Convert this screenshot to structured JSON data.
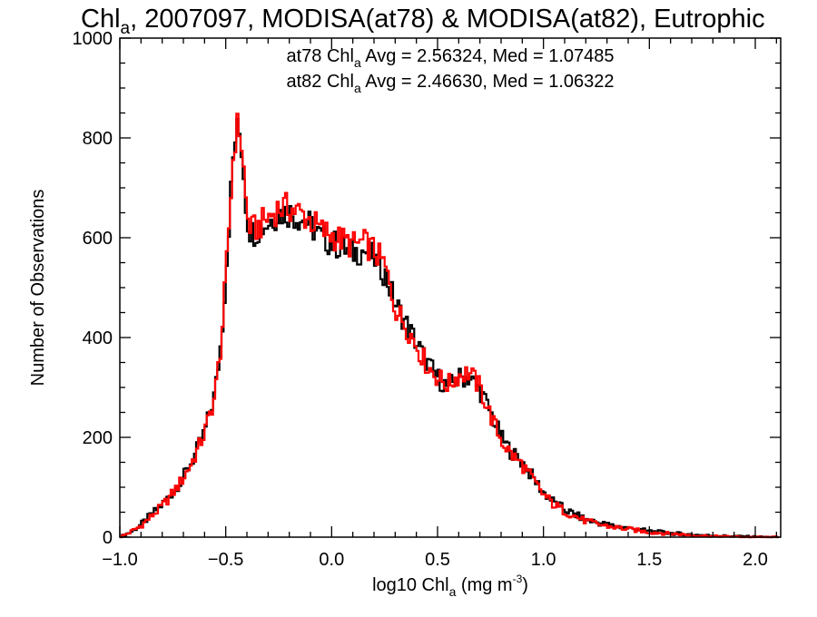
{
  "chart_data": {
    "type": "line",
    "style": "step-histogram",
    "title": {
      "prefix": "Chl",
      "prefix_sub": "a",
      "rest": ", 2007097, MODISA(at78) & MODISA(at82), Eutrophic"
    },
    "xlabel": {
      "prefix": "log10 Chl",
      "sub": "a",
      "unit": " (mg m",
      "sup": "-3",
      "close": ")"
    },
    "ylabel": "Number of Observations",
    "xlim": [
      -1.0,
      2.12
    ],
    "ylim": [
      0,
      1000
    ],
    "x_ticks": [
      -1.0,
      -0.5,
      0.0,
      0.5,
      1.0,
      1.5,
      2.0
    ],
    "x_tick_labels": [
      "−1.0",
      "−0.5",
      "0.0",
      "0.5",
      "1.0",
      "1.5",
      "2.0"
    ],
    "y_ticks": [
      0,
      200,
      400,
      600,
      800,
      1000
    ],
    "y_tick_labels": [
      "0",
      "200",
      "400",
      "600",
      "800",
      "1000"
    ],
    "grid": false,
    "legend_placement": "top-center",
    "bin_width": 0.01,
    "series": [
      {
        "name": "at78",
        "color": "#000000",
        "stats": {
          "a": "at78 Chl",
          "sub": "a",
          "b": " Avg = 2.56324, Med = 1.07485"
        },
        "x": [
          -1.0,
          -0.95,
          -0.9,
          -0.85,
          -0.8,
          -0.75,
          -0.7,
          -0.65,
          -0.6,
          -0.55,
          -0.52,
          -0.5,
          -0.48,
          -0.46,
          -0.44,
          -0.43,
          -0.42,
          -0.41,
          -0.4,
          -0.38,
          -0.35,
          -0.3,
          -0.25,
          -0.2,
          -0.15,
          -0.1,
          -0.05,
          0.0,
          0.05,
          0.1,
          0.15,
          0.2,
          0.25,
          0.3,
          0.35,
          0.4,
          0.45,
          0.5,
          0.55,
          0.6,
          0.65,
          0.7,
          0.75,
          0.8,
          0.85,
          0.9,
          0.95,
          1.0,
          1.05,
          1.1,
          1.15,
          1.2,
          1.3,
          1.4,
          1.5,
          1.6,
          1.7,
          1.8,
          1.9,
          2.0,
          2.1
        ],
        "y": [
          0,
          10,
          25,
          45,
          65,
          90,
          120,
          160,
          210,
          290,
          400,
          520,
          660,
          790,
          820,
          800,
          760,
          700,
          640,
          610,
          615,
          630,
          650,
          650,
          640,
          625,
          600,
          590,
          580,
          570,
          575,
          560,
          530,
          470,
          430,
          390,
          350,
          320,
          300,
          320,
          320,
          295,
          250,
          200,
          170,
          150,
          120,
          90,
          70,
          55,
          45,
          35,
          25,
          18,
          12,
          8,
          5,
          3,
          2,
          1,
          0
        ]
      },
      {
        "name": "at82",
        "color": "#ff0000",
        "stats": {
          "a": "at82 Chl",
          "sub": "a",
          "b": " Avg = 2.46630, Med = 1.06322"
        },
        "x": [
          -1.0,
          -0.95,
          -0.9,
          -0.85,
          -0.8,
          -0.75,
          -0.7,
          -0.65,
          -0.6,
          -0.55,
          -0.52,
          -0.5,
          -0.48,
          -0.46,
          -0.44,
          -0.43,
          -0.42,
          -0.41,
          -0.4,
          -0.38,
          -0.35,
          -0.3,
          -0.25,
          -0.2,
          -0.15,
          -0.1,
          -0.05,
          0.0,
          0.05,
          0.1,
          0.15,
          0.2,
          0.25,
          0.3,
          0.35,
          0.4,
          0.45,
          0.5,
          0.55,
          0.6,
          0.65,
          0.7,
          0.75,
          0.8,
          0.85,
          0.9,
          0.95,
          1.0,
          1.05,
          1.1,
          1.15,
          1.2,
          1.3,
          1.4,
          1.5,
          1.6,
          1.7,
          1.8,
          1.9,
          2.0,
          2.1
        ],
        "y": [
          0,
          10,
          23,
          42,
          62,
          88,
          118,
          158,
          208,
          285,
          395,
          515,
          655,
          790,
          830,
          805,
          765,
          705,
          645,
          615,
          620,
          640,
          660,
          660,
          650,
          635,
          615,
          605,
          595,
          585,
          590,
          575,
          545,
          460,
          425,
          385,
          345,
          320,
          305,
          325,
          330,
          300,
          245,
          195,
          165,
          145,
          115,
          85,
          65,
          52,
          42,
          32,
          22,
          16,
          10,
          7,
          4,
          2,
          1,
          0,
          0
        ]
      }
    ]
  }
}
